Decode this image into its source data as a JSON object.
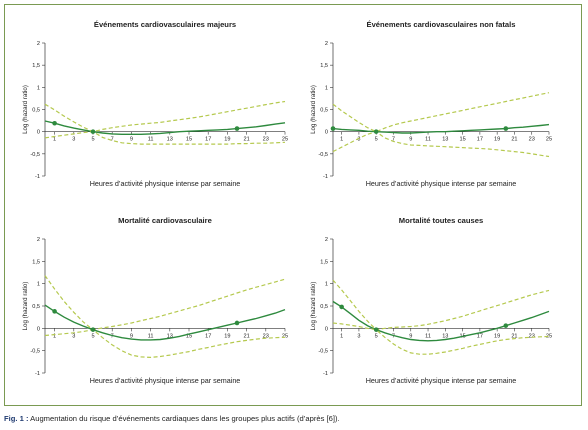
{
  "caption": {
    "label": "Fig. 1 :",
    "text": "Augmentation du risque d’événements cardiaques dans les groupes plus actifs (d’après [6])."
  },
  "colors": {
    "curve": "#2e8a3e",
    "ci": "#b5c94e",
    "marker": "#2e8a3e",
    "axis": "#333333",
    "frame": "#7a9a52"
  },
  "chart_data": [
    {
      "type": "line",
      "title": "Événements cardiovasculaires majeurs",
      "xlabel": "Heures d’activité physique intense par semaine",
      "ylabel": "Log (hazard ratio)",
      "xlim": [
        0,
        25
      ],
      "ylim": [
        -1,
        2
      ],
      "xticks": [
        "1",
        "3",
        "5",
        "7",
        "9",
        "11",
        "13",
        "15",
        "17",
        "19",
        "21",
        "23",
        "25"
      ],
      "yticks": [
        "2",
        "1,5",
        "1",
        "0,5",
        "0",
        "-0,5",
        "-1"
      ],
      "x": [
        0,
        1,
        2,
        3,
        4,
        5,
        6,
        7,
        8,
        9,
        10,
        11,
        12,
        13,
        14,
        15,
        16,
        17,
        18,
        19,
        20,
        21,
        22,
        23,
        24,
        25
      ],
      "series": [
        {
          "role": "estimate",
          "values": [
            0.24,
            0.19,
            0.13,
            0.08,
            0.04,
            0.0,
            -0.03,
            -0.05,
            -0.06,
            -0.06,
            -0.06,
            -0.05,
            -0.04,
            -0.02,
            0.0,
            0.01,
            0.02,
            0.03,
            0.04,
            0.05,
            0.07,
            0.09,
            0.11,
            0.14,
            0.17,
            0.2
          ]
        },
        {
          "role": "upper",
          "values": [
            0.62,
            0.49,
            0.35,
            0.22,
            0.1,
            0.0,
            0.05,
            0.09,
            0.12,
            0.15,
            0.17,
            0.19,
            0.21,
            0.24,
            0.27,
            0.3,
            0.33,
            0.37,
            0.41,
            0.45,
            0.49,
            0.53,
            0.57,
            0.61,
            0.65,
            0.68
          ]
        },
        {
          "role": "lower",
          "values": [
            -0.14,
            -0.11,
            -0.08,
            -0.05,
            -0.02,
            0.0,
            -0.13,
            -0.2,
            -0.25,
            -0.27,
            -0.28,
            -0.28,
            -0.28,
            -0.28,
            -0.28,
            -0.28,
            -0.28,
            -0.28,
            -0.28,
            -0.28,
            -0.27,
            -0.27,
            -0.26,
            -0.26,
            -0.25,
            -0.24
          ]
        }
      ],
      "markers": [
        {
          "x": 1,
          "y": 0.19
        },
        {
          "x": 5,
          "y": 0.0
        },
        {
          "x": 20,
          "y": 0.07
        }
      ]
    },
    {
      "type": "line",
      "title": "Événements cardiovasculaires non fatals",
      "xlabel": "Heures d’activité physique intense par semaine",
      "ylabel": "Log (hazard ratio)",
      "xlim": [
        0,
        25
      ],
      "ylim": [
        -1,
        2
      ],
      "xticks": [
        "1",
        "3",
        "5",
        "7",
        "9",
        "11",
        "13",
        "15",
        "17",
        "19",
        "21",
        "23",
        "25"
      ],
      "yticks": [
        "2",
        "1,5",
        "1",
        "0,5",
        "0",
        "-0,5",
        "-1"
      ],
      "x": [
        0,
        1,
        2,
        3,
        4,
        5,
        6,
        7,
        8,
        9,
        10,
        11,
        12,
        13,
        14,
        15,
        16,
        17,
        18,
        19,
        20,
        21,
        22,
        23,
        24,
        25
      ],
      "series": [
        {
          "role": "estimate",
          "values": [
            0.07,
            0.05,
            0.04,
            0.03,
            0.01,
            0.0,
            -0.01,
            -0.02,
            -0.03,
            -0.03,
            -0.02,
            -0.01,
            0.0,
            0.0,
            0.01,
            0.02,
            0.03,
            0.04,
            0.05,
            0.06,
            0.07,
            0.09,
            0.1,
            0.12,
            0.14,
            0.16
          ]
        },
        {
          "role": "upper",
          "values": [
            0.62,
            0.47,
            0.34,
            0.21,
            0.09,
            0.0,
            0.08,
            0.15,
            0.2,
            0.24,
            0.28,
            0.32,
            0.36,
            0.4,
            0.44,
            0.48,
            0.52,
            0.56,
            0.6,
            0.64,
            0.68,
            0.72,
            0.76,
            0.8,
            0.84,
            0.88
          ]
        },
        {
          "role": "lower",
          "values": [
            -0.45,
            -0.35,
            -0.25,
            -0.15,
            -0.06,
            0.0,
            -0.14,
            -0.22,
            -0.27,
            -0.3,
            -0.31,
            -0.32,
            -0.33,
            -0.34,
            -0.35,
            -0.36,
            -0.37,
            -0.38,
            -0.39,
            -0.41,
            -0.43,
            -0.45,
            -0.47,
            -0.5,
            -0.53,
            -0.56
          ]
        }
      ],
      "markers": [
        {
          "x": 0,
          "y": 0.07
        },
        {
          "x": 5,
          "y": 0.0
        },
        {
          "x": 20,
          "y": 0.07
        }
      ]
    },
    {
      "type": "line",
      "title": "Mortalité cardiovasculaire",
      "xlabel": "Heures d’activité physique intense par semaine",
      "ylabel": "Log (hazard ratio)",
      "xlim": [
        0,
        25
      ],
      "ylim": [
        -1,
        2
      ],
      "xticks": [
        "1",
        "3",
        "5",
        "7",
        "9",
        "11",
        "13",
        "15",
        "17",
        "19",
        "21",
        "23",
        "25"
      ],
      "yticks": [
        "2",
        "1,5",
        "1",
        "0,5",
        "0",
        "-0,5",
        "-1"
      ],
      "x": [
        0,
        1,
        2,
        3,
        4,
        5,
        6,
        7,
        8,
        9,
        10,
        11,
        12,
        13,
        14,
        15,
        16,
        17,
        18,
        19,
        20,
        21,
        22,
        23,
        24,
        25
      ],
      "series": [
        {
          "role": "estimate",
          "values": [
            0.52,
            0.38,
            0.25,
            0.14,
            0.05,
            -0.03,
            -0.1,
            -0.16,
            -0.21,
            -0.24,
            -0.26,
            -0.26,
            -0.25,
            -0.22,
            -0.18,
            -0.13,
            -0.08,
            -0.03,
            0.02,
            0.07,
            0.12,
            0.17,
            0.22,
            0.28,
            0.34,
            0.42
          ]
        },
        {
          "role": "upper",
          "values": [
            1.18,
            0.88,
            0.6,
            0.36,
            0.14,
            -0.03,
            0.01,
            0.04,
            0.08,
            0.12,
            0.17,
            0.22,
            0.27,
            0.33,
            0.39,
            0.45,
            0.51,
            0.58,
            0.65,
            0.72,
            0.79,
            0.86,
            0.92,
            0.98,
            1.04,
            1.1
          ]
        },
        {
          "role": "lower",
          "values": [
            -0.16,
            -0.14,
            -0.12,
            -0.1,
            -0.07,
            -0.03,
            -0.21,
            -0.37,
            -0.5,
            -0.6,
            -0.64,
            -0.65,
            -0.63,
            -0.6,
            -0.56,
            -0.52,
            -0.47,
            -0.43,
            -0.38,
            -0.34,
            -0.3,
            -0.27,
            -0.24,
            -0.22,
            -0.21,
            -0.2
          ]
        }
      ],
      "markers": [
        {
          "x": 1,
          "y": 0.38
        },
        {
          "x": 5,
          "y": -0.03
        },
        {
          "x": 20,
          "y": 0.12
        }
      ]
    },
    {
      "type": "line",
      "title": "Mortalité toutes causes",
      "xlabel": "Heures d’activité physique intense par semaine",
      "ylabel": "Log (hazard ratio)",
      "xlim": [
        0,
        25
      ],
      "ylim": [
        -1,
        2
      ],
      "xticks": [
        "1",
        "3",
        "5",
        "7",
        "9",
        "11",
        "13",
        "15",
        "17",
        "19",
        "21",
        "23",
        "25"
      ],
      "yticks": [
        "2",
        "1,5",
        "1",
        "0,5",
        "0",
        "-0,5",
        "-1"
      ],
      "x": [
        0,
        1,
        2,
        3,
        4,
        5,
        6,
        7,
        8,
        9,
        10,
        11,
        12,
        13,
        14,
        15,
        16,
        17,
        18,
        19,
        20,
        21,
        22,
        23,
        24,
        25
      ],
      "series": [
        {
          "role": "estimate",
          "values": [
            0.6,
            0.48,
            0.33,
            0.18,
            0.06,
            -0.03,
            -0.1,
            -0.16,
            -0.21,
            -0.25,
            -0.27,
            -0.28,
            -0.27,
            -0.25,
            -0.22,
            -0.18,
            -0.14,
            -0.1,
            -0.05,
            0.0,
            0.06,
            0.12,
            0.18,
            0.24,
            0.31,
            0.38
          ]
        },
        {
          "role": "upper",
          "values": [
            1.08,
            0.86,
            0.62,
            0.38,
            0.16,
            -0.03,
            0.0,
            0.02,
            0.03,
            0.04,
            0.06,
            0.09,
            0.13,
            0.17,
            0.22,
            0.27,
            0.33,
            0.39,
            0.45,
            0.51,
            0.57,
            0.63,
            0.69,
            0.75,
            0.8,
            0.85
          ]
        },
        {
          "role": "lower",
          "values": [
            0.12,
            0.1,
            0.07,
            0.04,
            0.0,
            -0.03,
            -0.2,
            -0.35,
            -0.47,
            -0.55,
            -0.58,
            -0.58,
            -0.56,
            -0.53,
            -0.49,
            -0.45,
            -0.4,
            -0.36,
            -0.32,
            -0.28,
            -0.25,
            -0.23,
            -0.21,
            -0.2,
            -0.19,
            -0.18
          ]
        }
      ],
      "markers": [
        {
          "x": 1,
          "y": 0.48
        },
        {
          "x": 5,
          "y": -0.03
        },
        {
          "x": 20,
          "y": 0.06
        }
      ]
    }
  ]
}
